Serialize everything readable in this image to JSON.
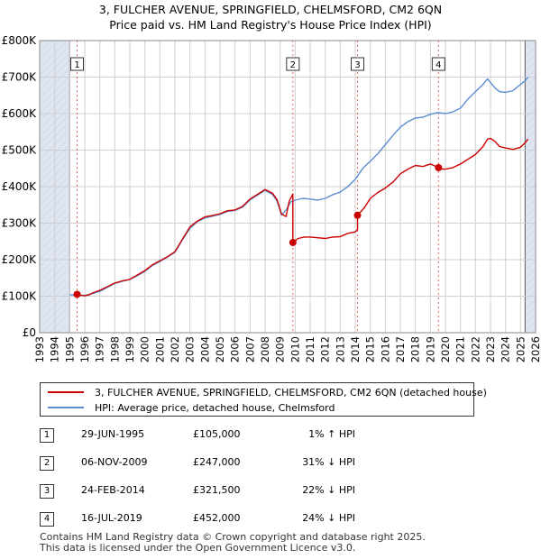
{
  "title": {
    "line1": "3, FULCHER AVENUE, SPRINGFIELD, CHELMSFORD, CM2 6QN",
    "line2": "Price paid vs. HM Land Registry's House Price Index (HPI)"
  },
  "colors": {
    "price_paid": "#cc0000",
    "hpi": "#5b8fd1",
    "shade": "#dfe6f2",
    "grid": "#cfcfcf",
    "marker_line": "#e06666"
  },
  "legend": {
    "price_paid": "3, FULCHER AVENUE, SPRINGFIELD, CHELMSFORD, CM2 6QN (detached house)",
    "hpi": "HPI: Average price, detached house, Chelmsford"
  },
  "sales": [
    {
      "num": "1",
      "date": "29-JUN-1995",
      "price": "£105,000",
      "hpi": "1% ↑ HPI"
    },
    {
      "num": "2",
      "date": "06-NOV-2009",
      "price": "£247,000",
      "hpi": "31% ↓ HPI"
    },
    {
      "num": "3",
      "date": "24-FEB-2014",
      "price": "£321,500",
      "hpi": "22% ↓ HPI"
    },
    {
      "num": "4",
      "date": "16-JUL-2019",
      "price": "£452,000",
      "hpi": "24% ↓ HPI"
    }
  ],
  "footer": {
    "line1": "Contains HM Land Registry data © Crown copyright and database right 2025.",
    "line2": "This data is licensed under the Open Government Licence v3.0."
  },
  "chart_data": {
    "type": "line",
    "title": "Price paid vs. HM Land Registry's House Price Index (HPI)",
    "xlabel": "",
    "ylabel": "",
    "xlim": [
      1993,
      2026
    ],
    "ylim": [
      0,
      800000
    ],
    "y_ticks": [
      {
        "value": 0,
        "label": "£0"
      },
      {
        "value": 100000,
        "label": "£100K"
      },
      {
        "value": 200000,
        "label": "£200K"
      },
      {
        "value": 300000,
        "label": "£300K"
      },
      {
        "value": 400000,
        "label": "£400K"
      },
      {
        "value": 500000,
        "label": "£500K"
      },
      {
        "value": 600000,
        "label": "£600K"
      },
      {
        "value": 700000,
        "label": "£700K"
      },
      {
        "value": 800000,
        "label": "£800K"
      }
    ],
    "x_ticks": [
      "1993",
      "1994",
      "1995",
      "1996",
      "1997",
      "1998",
      "1999",
      "2000",
      "2001",
      "2002",
      "2003",
      "2004",
      "2005",
      "2006",
      "2007",
      "2008",
      "2009",
      "2010",
      "2011",
      "2012",
      "2013",
      "2014",
      "2015",
      "2016",
      "2017",
      "2018",
      "2019",
      "2020",
      "2021",
      "2022",
      "2023",
      "2024",
      "2025",
      "2026"
    ],
    "shaded_ranges": [
      [
        1993,
        1995.0
      ],
      [
        2025.3,
        2026
      ]
    ],
    "grid": true,
    "series": [
      {
        "name": "3, FULCHER AVENUE, SPRINGFIELD, CHELMSFORD, CM2 6QN (detached house)",
        "color_key": "price_paid",
        "x": [
          1995.49,
          1995.7,
          1996.0,
          1996.3,
          1996.6,
          1997.0,
          1997.5,
          1998.0,
          1998.5,
          1999.0,
          1999.5,
          2000.0,
          2000.5,
          2001.0,
          2001.5,
          2002.0,
          2002.5,
          2003.0,
          2003.5,
          2004.0,
          2004.5,
          2005.0,
          2005.5,
          2006.0,
          2006.5,
          2007.0,
          2007.5,
          2008.0,
          2008.5,
          2008.8,
          2009.1,
          2009.4,
          2009.6,
          2009.85,
          2009.85,
          2010.2,
          2010.6,
          2011.0,
          2011.5,
          2012.0,
          2012.5,
          2013.0,
          2013.5,
          2014.0,
          2014.15,
          2014.15,
          2014.6,
          2015.0,
          2015.5,
          2016.0,
          2016.5,
          2017.0,
          2017.5,
          2018.0,
          2018.5,
          2019.0,
          2019.54,
          2019.8,
          2020.0,
          2020.5,
          2021.0,
          2021.5,
          2022.0,
          2022.5,
          2022.8,
          2023.0,
          2023.3,
          2023.6,
          2024.0,
          2024.5,
          2025.0,
          2025.3,
          2025.5
        ],
        "y": [
          105000,
          103000,
          101000,
          104000,
          110000,
          116000,
          126000,
          136000,
          142000,
          146000,
          158000,
          170000,
          186000,
          197000,
          208000,
          222000,
          256000,
          290000,
          306000,
          317000,
          321000,
          326000,
          334000,
          336000,
          346000,
          366000,
          379000,
          392000,
          382000,
          364000,
          325000,
          318000,
          360000,
          380000,
          247000,
          258000,
          262000,
          262000,
          260000,
          258000,
          262000,
          263000,
          272000,
          276000,
          282000,
          321500,
          342000,
          368000,
          384000,
          396000,
          412000,
          435000,
          448000,
          458000,
          455000,
          462000,
          452000,
          448000,
          448000,
          452000,
          462000,
          475000,
          488000,
          510000,
          530000,
          532000,
          524000,
          510000,
          506000,
          502000,
          508000,
          520000,
          530000
        ]
      },
      {
        "name": "HPI: Average price, detached house, Chelmsford",
        "color_key": "hpi",
        "x": [
          1995.0,
          1995.5,
          1996.0,
          1996.5,
          1997.0,
          1997.5,
          1998.0,
          1998.5,
          1999.0,
          1999.5,
          2000.0,
          2000.5,
          2001.0,
          2001.5,
          2002.0,
          2002.5,
          2003.0,
          2003.5,
          2004.0,
          2004.5,
          2005.0,
          2005.5,
          2006.0,
          2006.5,
          2007.0,
          2007.5,
          2008.0,
          2008.5,
          2008.8,
          2009.1,
          2009.4,
          2009.7,
          2010.0,
          2010.5,
          2011.0,
          2011.5,
          2012.0,
          2012.5,
          2013.0,
          2013.5,
          2014.0,
          2014.5,
          2015.0,
          2015.5,
          2016.0,
          2016.5,
          2017.0,
          2017.5,
          2018.0,
          2018.5,
          2019.0,
          2019.5,
          2020.0,
          2020.5,
          2021.0,
          2021.5,
          2022.0,
          2022.5,
          2022.8,
          2023.0,
          2023.3,
          2023.6,
          2024.0,
          2024.5,
          2025.0,
          2025.3,
          2025.5
        ],
        "y": [
          104000,
          103000,
          102000,
          107000,
          113000,
          124000,
          135000,
          141000,
          146000,
          156000,
          168000,
          184000,
          195000,
          207000,
          220000,
          254000,
          286000,
          304000,
          314000,
          319000,
          324000,
          332000,
          335000,
          344000,
          364000,
          377000,
          390000,
          378000,
          360000,
          322000,
          336000,
          358000,
          363000,
          368000,
          366000,
          363000,
          368000,
          378000,
          385000,
          400000,
          420000,
          450000,
          470000,
          490000,
          515000,
          540000,
          563000,
          578000,
          588000,
          590000,
          598000,
          603000,
          600000,
          605000,
          615000,
          640000,
          660000,
          680000,
          695000,
          685000,
          670000,
          660000,
          658000,
          663000,
          680000,
          690000,
          700000
        ]
      }
    ],
    "sale_markers": [
      {
        "label": "1",
        "x": 1995.49,
        "y": 105000
      },
      {
        "label": "2",
        "x": 2009.85,
        "y": 247000
      },
      {
        "label": "3",
        "x": 2014.15,
        "y": 321500
      },
      {
        "label": "4",
        "x": 2019.54,
        "y": 452000
      }
    ]
  }
}
